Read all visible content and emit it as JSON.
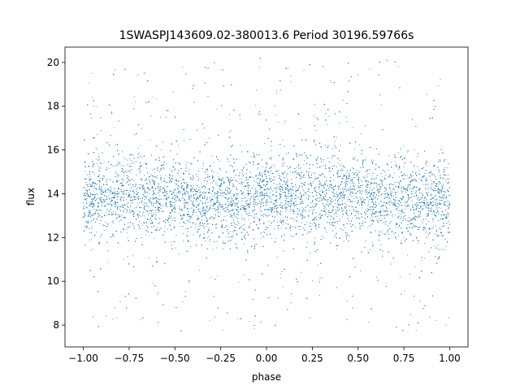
{
  "chart_data": {
    "type": "scatter",
    "title": "1SWASPJ143609.02-380013.6 Period 30196.59766s",
    "xlabel": "phase",
    "ylabel": "flux",
    "xlim": [
      -1.1,
      1.1
    ],
    "ylim": [
      7.0,
      20.7
    ],
    "xticks": [
      -1.0,
      -0.75,
      -0.5,
      -0.25,
      0.0,
      0.25,
      0.5,
      0.75,
      1.0
    ],
    "xtick_labels": [
      "−1.00",
      "−0.75",
      "−0.50",
      "−0.25",
      "0.00",
      "0.25",
      "0.50",
      "0.75",
      "1.00"
    ],
    "yticks": [
      8,
      10,
      12,
      14,
      16,
      18,
      20
    ],
    "ytick_labels": [
      "8",
      "10",
      "12",
      "14",
      "16",
      "18",
      "20"
    ],
    "grid": false,
    "marker_color": "#1f77b4",
    "series": [
      {
        "phase_range": [
          -1.0,
          1.0
        ],
        "flux_center": 13.8,
        "flux_core_band": [
          12.0,
          16.0
        ],
        "flux_extent": [
          7.7,
          20.2
        ],
        "points": [
          [
            -1.0,
            13.6
          ],
          [
            -0.9,
            14.1
          ],
          [
            -0.8,
            13.4
          ],
          [
            -0.7,
            14.3
          ],
          [
            -0.6,
            13.7
          ],
          [
            -0.5,
            14.2
          ],
          [
            -0.4,
            13.9
          ],
          [
            -0.3,
            14.0
          ],
          [
            -0.2,
            13.5
          ],
          [
            -0.1,
            14.1
          ],
          [
            0.0,
            13.6
          ],
          [
            0.1,
            13.9
          ],
          [
            0.2,
            14.2
          ],
          [
            0.3,
            13.8
          ],
          [
            0.4,
            14.0
          ],
          [
            0.5,
            13.7
          ],
          [
            0.6,
            14.3
          ],
          [
            0.7,
            13.5
          ],
          [
            0.8,
            14.1
          ],
          [
            0.9,
            13.9
          ],
          [
            1.0,
            13.6
          ],
          [
            -0.95,
            19.5
          ],
          [
            -0.62,
            18.4
          ],
          [
            -0.31,
            8.2
          ],
          [
            0.05,
            17.6
          ],
          [
            0.44,
            9.1
          ],
          [
            0.72,
            19.8
          ],
          [
            0.98,
            8.0
          ],
          [
            -0.12,
            10.3
          ],
          [
            0.27,
            16.9
          ],
          [
            -0.78,
            11.0
          ]
        ]
      }
    ]
  }
}
